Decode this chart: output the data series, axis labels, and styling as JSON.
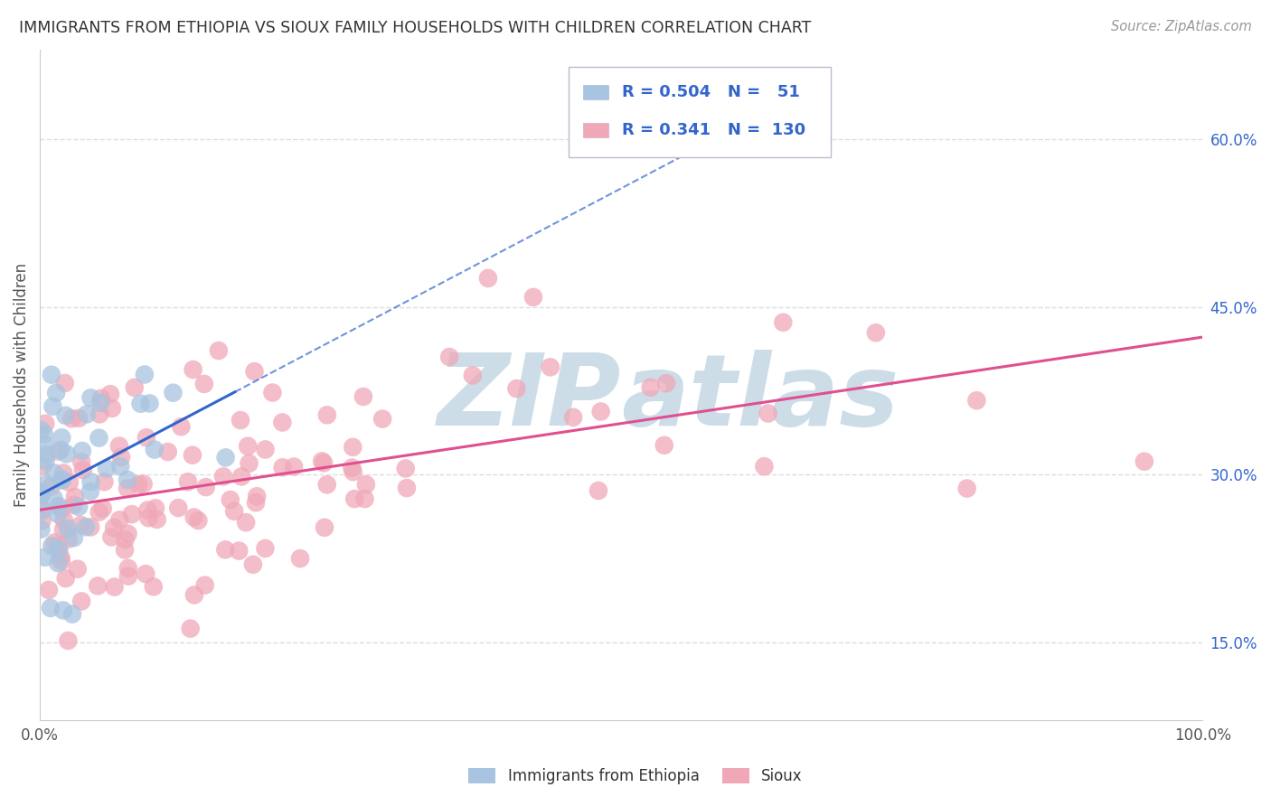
{
  "title": "IMMIGRANTS FROM ETHIOPIA VS SIOUX FAMILY HOUSEHOLDS WITH CHILDREN CORRELATION CHART",
  "source": "Source: ZipAtlas.com",
  "ylabel": "Family Households with Children",
  "right_yticks": [
    "15.0%",
    "30.0%",
    "45.0%",
    "60.0%"
  ],
  "right_ytick_vals": [
    0.15,
    0.3,
    0.45,
    0.6
  ],
  "legend_label1": "Immigrants from Ethiopia",
  "legend_label2": "Sioux",
  "R1": 0.504,
  "N1": 51,
  "R2": 0.341,
  "N2": 130,
  "color_blue": "#a8c4e0",
  "color_pink": "#f0a8b8",
  "line_color_blue": "#3366cc",
  "line_color_pink": "#e05090",
  "text_color_blue": "#3366cc",
  "watermark_color": "#ccdde8",
  "background_color": "#ffffff",
  "grid_color": "#dddddd",
  "title_color": "#333333",
  "source_color": "#999999",
  "seed": 12,
  "xlim": [
    0.0,
    1.0
  ],
  "ylim": [
    0.08,
    0.68
  ]
}
